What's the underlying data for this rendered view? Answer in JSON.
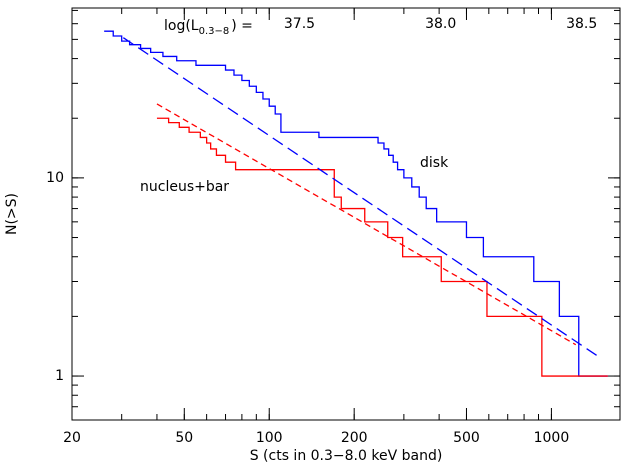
{
  "chart_data": {
    "type": "step",
    "xlabel": "S (cts in 0.3−8.0 keV band)",
    "ylabel": "N(>S)",
    "xscale": "log",
    "yscale": "log",
    "xlim": [
      20,
      1750
    ],
    "ylim": [
      0.6,
      72
    ],
    "xticks": [
      20,
      50,
      100,
      200,
      500,
      1000
    ],
    "yticks": [
      1,
      10
    ],
    "top_axis": {
      "label": "log(L",
      "label_sub": "0.3−8",
      "label_tail": ") =",
      "ticks": [
        {
          "value": 128,
          "label": "37.5"
        },
        {
          "value": 405,
          "label": "38.0"
        },
        {
          "value": 1280,
          "label": "38.5"
        }
      ]
    },
    "series": [
      {
        "name": "disk",
        "color": "#0000ff",
        "x": [
          26,
          28,
          30,
          32,
          35,
          38,
          42,
          47,
          55,
          70,
          75,
          80,
          85,
          90,
          95,
          100,
          105,
          110,
          150,
          243,
          255,
          265,
          275,
          285,
          300,
          320,
          340,
          360,
          392,
          500,
          574,
          866,
          1067,
          1250,
          1585
        ],
        "values": [
          55,
          52,
          49,
          47,
          45,
          43,
          41,
          39,
          37,
          35,
          33,
          31,
          29,
          27,
          25,
          23,
          21,
          17,
          16,
          15,
          14,
          13,
          12,
          11,
          10,
          9,
          8,
          7,
          6,
          5,
          4,
          3,
          2,
          1,
          1
        ]
      },
      {
        "name": "nucleus+bar",
        "color": "#ff0000",
        "x": [
          40,
          44,
          48,
          52,
          57,
          60,
          62,
          65,
          70,
          76,
          170,
          180,
          218,
          263,
          297,
          407,
          591,
          925,
          1585
        ],
        "values": [
          20,
          19,
          18,
          17,
          16,
          15,
          14,
          13,
          12,
          11,
          8,
          7,
          6,
          5,
          4,
          3,
          2,
          1,
          1
        ]
      }
    ],
    "fits": [
      {
        "color": "#0000ff",
        "x": [
          30.4,
          1460
        ],
        "values": [
          51,
          1.26
        ]
      },
      {
        "color": "#ff0000",
        "x": [
          40,
          1220
        ],
        "values": [
          23.6,
          1.44
        ]
      }
    ]
  }
}
